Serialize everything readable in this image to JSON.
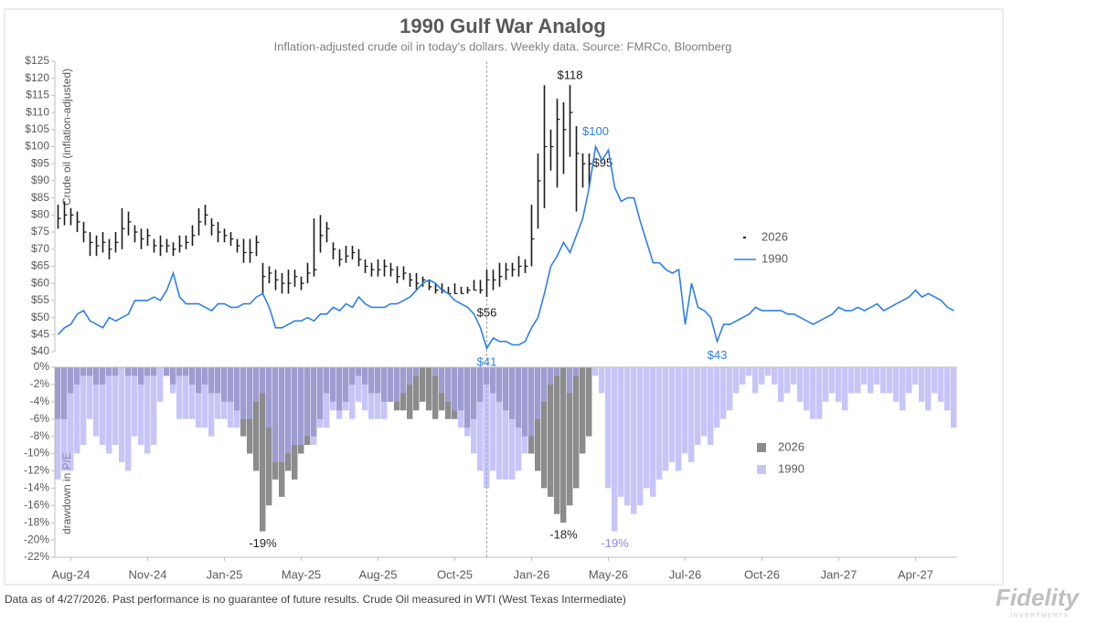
{
  "chart_data": [
    {
      "type": "line",
      "title": "1990 Gulf War Analog",
      "subtitle": "Inflation-adjusted crude oil in today's dollars. Weekly data.  Source: FMRCo, Bloomberg",
      "ylabel": "Crude oil (inflation-adjusted)",
      "xlim": [
        -0.5,
        140.5
      ],
      "vline": 67,
      "ylim": [
        40,
        125
      ],
      "yticks": [
        {
          "value": 40,
          "label": "$40"
        },
        {
          "value": 45,
          "label": "$45"
        },
        {
          "value": 50,
          "label": "$50"
        },
        {
          "value": 55,
          "label": "$55"
        },
        {
          "value": 60,
          "label": "$60"
        },
        {
          "value": 65,
          "label": "$65"
        },
        {
          "value": 70,
          "label": "$70"
        },
        {
          "value": 75,
          "label": "$75"
        },
        {
          "value": 80,
          "label": "$80"
        },
        {
          "value": 85,
          "label": "$85"
        },
        {
          "value": 90,
          "label": "$90"
        },
        {
          "value": 95,
          "label": "$95"
        },
        {
          "value": 100,
          "label": "$100"
        },
        {
          "value": 105,
          "label": "$105"
        },
        {
          "value": 110,
          "label": "$110"
        },
        {
          "value": 115,
          "label": "$115"
        },
        {
          "value": 120,
          "label": "$120"
        },
        {
          "value": 125,
          "label": "$125"
        }
      ],
      "legend": "right",
      "series": [
        {
          "name": "2026",
          "type": "range",
          "color": "#1a1a1a",
          "high": [
            83,
            84,
            82,
            81,
            78,
            75,
            74,
            75,
            73,
            75,
            82,
            81,
            77,
            76,
            76,
            73,
            74,
            73,
            72,
            74,
            74,
            77,
            82,
            83,
            79,
            78,
            76,
            75,
            73,
            73,
            73,
            74,
            66,
            65,
            64,
            63,
            64,
            64,
            62,
            66,
            79,
            80,
            78,
            72,
            70,
            71,
            71,
            70,
            67,
            66,
            67,
            67,
            66,
            65,
            65,
            63,
            63,
            62,
            61,
            60,
            60,
            59,
            60,
            59,
            59,
            61,
            61,
            64,
            64,
            66,
            66,
            66,
            68,
            67,
            83,
            98,
            118,
            105,
            114,
            113,
            118,
            106,
            98,
            98
          ],
          "low": [
            76,
            77,
            77,
            75,
            72,
            68,
            68,
            69,
            67,
            69,
            70,
            74,
            72,
            70,
            71,
            69,
            68,
            69,
            68,
            69,
            70,
            71,
            74,
            77,
            74,
            72,
            72,
            71,
            69,
            66,
            66,
            68,
            57,
            60,
            58,
            57,
            57,
            59,
            58,
            60,
            62,
            69,
            72,
            67,
            65,
            66,
            67,
            65,
            63,
            62,
            62,
            62,
            62,
            60,
            61,
            59,
            58,
            59,
            58,
            57,
            57,
            57,
            57,
            57,
            57,
            58,
            57,
            56,
            58,
            59,
            61,
            62,
            62,
            63,
            65,
            76,
            82,
            93,
            88,
            92,
            97,
            81,
            88,
            88
          ],
          "values": [
            79,
            80,
            80,
            78,
            75,
            72,
            71,
            72,
            70,
            72,
            76,
            78,
            75,
            73,
            74,
            71,
            71,
            71,
            70,
            71,
            72,
            74,
            78,
            80,
            77,
            75,
            74,
            73,
            71,
            69,
            69,
            72,
            62,
            63,
            61,
            60,
            60,
            62,
            60,
            63,
            64,
            74,
            76,
            70,
            67,
            68,
            69,
            67,
            65,
            64,
            64,
            65,
            64,
            62,
            63,
            61,
            60,
            61,
            59,
            58,
            58,
            57,
            57,
            57,
            58,
            58,
            58,
            61,
            61,
            62,
            64,
            64,
            65,
            65,
            73,
            90,
            100,
            100,
            108,
            105,
            110,
            98,
            95,
            95
          ],
          "high_labels": {
            "80": "$118"
          },
          "low_labels": {
            "67": "$56"
          },
          "value_labels": {
            "83": "$95"
          }
        },
        {
          "name": "1990",
          "type": "line",
          "color": "#2f7fe6",
          "values": [
            45,
            47,
            48,
            51,
            52,
            49,
            48,
            47,
            50,
            49,
            50,
            51,
            55,
            55,
            55,
            56,
            55,
            58,
            63,
            56,
            54,
            54,
            54,
            53,
            52,
            54,
            54,
            53,
            53,
            54,
            54,
            56,
            57,
            53,
            47,
            47,
            48,
            49,
            49,
            50,
            49,
            51,
            51,
            53,
            52,
            54,
            53,
            56,
            54,
            53,
            53,
            53,
            54,
            54,
            55,
            56,
            58,
            60,
            61,
            60,
            58,
            57,
            55,
            54,
            53,
            51,
            47,
            41,
            44,
            43,
            43,
            42,
            42,
            43,
            47,
            50,
            57,
            65,
            68,
            72,
            69,
            74,
            79,
            88,
            100,
            96,
            99,
            88,
            84,
            85,
            85,
            78,
            72,
            66,
            66,
            64,
            63,
            64,
            48,
            60,
            53,
            52,
            50,
            43,
            48,
            48,
            49,
            50,
            51,
            53,
            52,
            52,
            52,
            52,
            51,
            51,
            50,
            49,
            48,
            49,
            50,
            51,
            53,
            52,
            52,
            53,
            52,
            53,
            54,
            52,
            53,
            54,
            55,
            56,
            58,
            56,
            57,
            56,
            55,
            53,
            52
          ],
          "value_labels": {
            "84": "$100",
            "67": "$41",
            "103": "$43"
          }
        }
      ]
    },
    {
      "type": "bar",
      "ylabel": "drawdown in P/E",
      "xlim": [
        -0.5,
        140.5
      ],
      "xticks": [
        {
          "value": 2,
          "label": "Aug-24"
        },
        {
          "value": 14,
          "label": "Nov-24"
        },
        {
          "value": 26,
          "label": "Jan-25"
        },
        {
          "value": 38,
          "label": "May-25"
        },
        {
          "value": 50,
          "label": "Aug-25"
        },
        {
          "value": 62,
          "label": "Oct-25"
        },
        {
          "value": 74,
          "label": "Jan-26"
        },
        {
          "value": 86,
          "label": "May-26"
        },
        {
          "value": 98,
          "label": "Jul-26"
        },
        {
          "value": 110,
          "label": "Oct-26"
        },
        {
          "value": 122,
          "label": "Jan-27"
        },
        {
          "value": 134,
          "label": "Apr-27"
        }
      ],
      "ylim": [
        -22,
        0
      ],
      "yticks": [
        {
          "value": 0,
          "label": "0%"
        },
        {
          "value": -2,
          "label": "-2%"
        },
        {
          "value": -4,
          "label": "-4%"
        },
        {
          "value": -6,
          "label": "-6%"
        },
        {
          "value": -8,
          "label": "-8%"
        },
        {
          "value": -10,
          "label": "-10%"
        },
        {
          "value": -12,
          "label": "-12%"
        },
        {
          "value": -14,
          "label": "-14%"
        },
        {
          "value": -16,
          "label": "-16%"
        },
        {
          "value": -18,
          "label": "-18%"
        },
        {
          "value": -20,
          "label": "-20%"
        },
        {
          "value": -22,
          "label": "-22%"
        }
      ],
      "legend": "right",
      "series": [
        {
          "name": "2026",
          "color": "#8c8c8c",
          "opacity": 1,
          "label_color": "#262626",
          "values": [
            -6,
            -6,
            -3,
            -2,
            -1,
            -1,
            -2,
            -2,
            -1,
            -1,
            0,
            -1,
            -1,
            -2,
            -1,
            -1,
            0,
            -1,
            -2,
            -1,
            -1,
            -2,
            -3,
            -2,
            -3,
            -3,
            -4,
            -4,
            -5,
            -8,
            -10,
            -12,
            -19,
            -16,
            -13,
            -15,
            -12,
            -13,
            -10,
            -9,
            -8,
            -6,
            -3,
            -4,
            -5,
            -4,
            -2,
            -1,
            -2,
            -3,
            -3,
            -4,
            -4,
            -5,
            -5,
            -6,
            -5,
            -4,
            -5,
            -6,
            -5,
            -6,
            -6,
            -5,
            -7,
            -6,
            -4,
            -2,
            -3,
            -4,
            -5,
            -6,
            -7,
            -8,
            -10,
            -12,
            -14,
            -15,
            -17,
            -18,
            -16,
            -14,
            -10,
            -8
          ],
          "value_labels": {
            "32": "-19%",
            "79": "-18%"
          }
        },
        {
          "name": "1990",
          "color": "#a9a6f5",
          "opacity": 0.65,
          "label_color": "#8f88ee",
          "values": [
            -13,
            -12,
            -12,
            -10,
            -9,
            -6,
            -8,
            -9,
            -10,
            -9,
            -11,
            -12,
            -8,
            -9,
            -10,
            -9,
            -4,
            -1,
            -3,
            -6,
            -6,
            -6,
            -7,
            -7,
            -8,
            -6,
            -6,
            -7,
            -7,
            -6,
            -6,
            -4,
            -3,
            -7,
            -11,
            -11,
            -10,
            -9,
            -9,
            -8,
            -9,
            -7,
            -7,
            -5,
            -6,
            -5,
            -6,
            -4,
            -5,
            -6,
            -6,
            -6,
            -4,
            -4,
            -3,
            -2,
            -1,
            0,
            0,
            -1,
            -3,
            -4,
            -5,
            -7,
            -8,
            -10,
            -12,
            -14,
            -12,
            -13,
            -13,
            -13,
            -12,
            -10,
            -8,
            -6,
            -4,
            -2,
            -1,
            0,
            -3,
            -1,
            0,
            0,
            -1,
            -3,
            -14,
            -19,
            -15,
            -16,
            -17,
            -16,
            -14,
            -15,
            -13,
            -12,
            -11,
            -12,
            -10,
            -11,
            -9,
            -8,
            -9,
            -7,
            -6,
            -5,
            -3,
            -2,
            -1,
            -3,
            -2,
            -1,
            -2,
            -4,
            -3,
            -2,
            -4,
            -5,
            -6,
            -6,
            -4,
            -3,
            -4,
            -5,
            -3,
            -3,
            -2,
            -3,
            -2,
            -3,
            -3,
            -4,
            -5,
            -3,
            -2,
            -4,
            -5,
            -3,
            -4,
            -5,
            -7
          ],
          "value_labels": {
            "87": "-19%"
          }
        }
      ]
    }
  ],
  "footer": "Data as of 4/27/2026. Past performance is no guarantee of future results. Crude Oil measured in WTI (West Texas Intermediate)",
  "logo": "Fidelity",
  "logo_sub": "INVESTMENTS"
}
